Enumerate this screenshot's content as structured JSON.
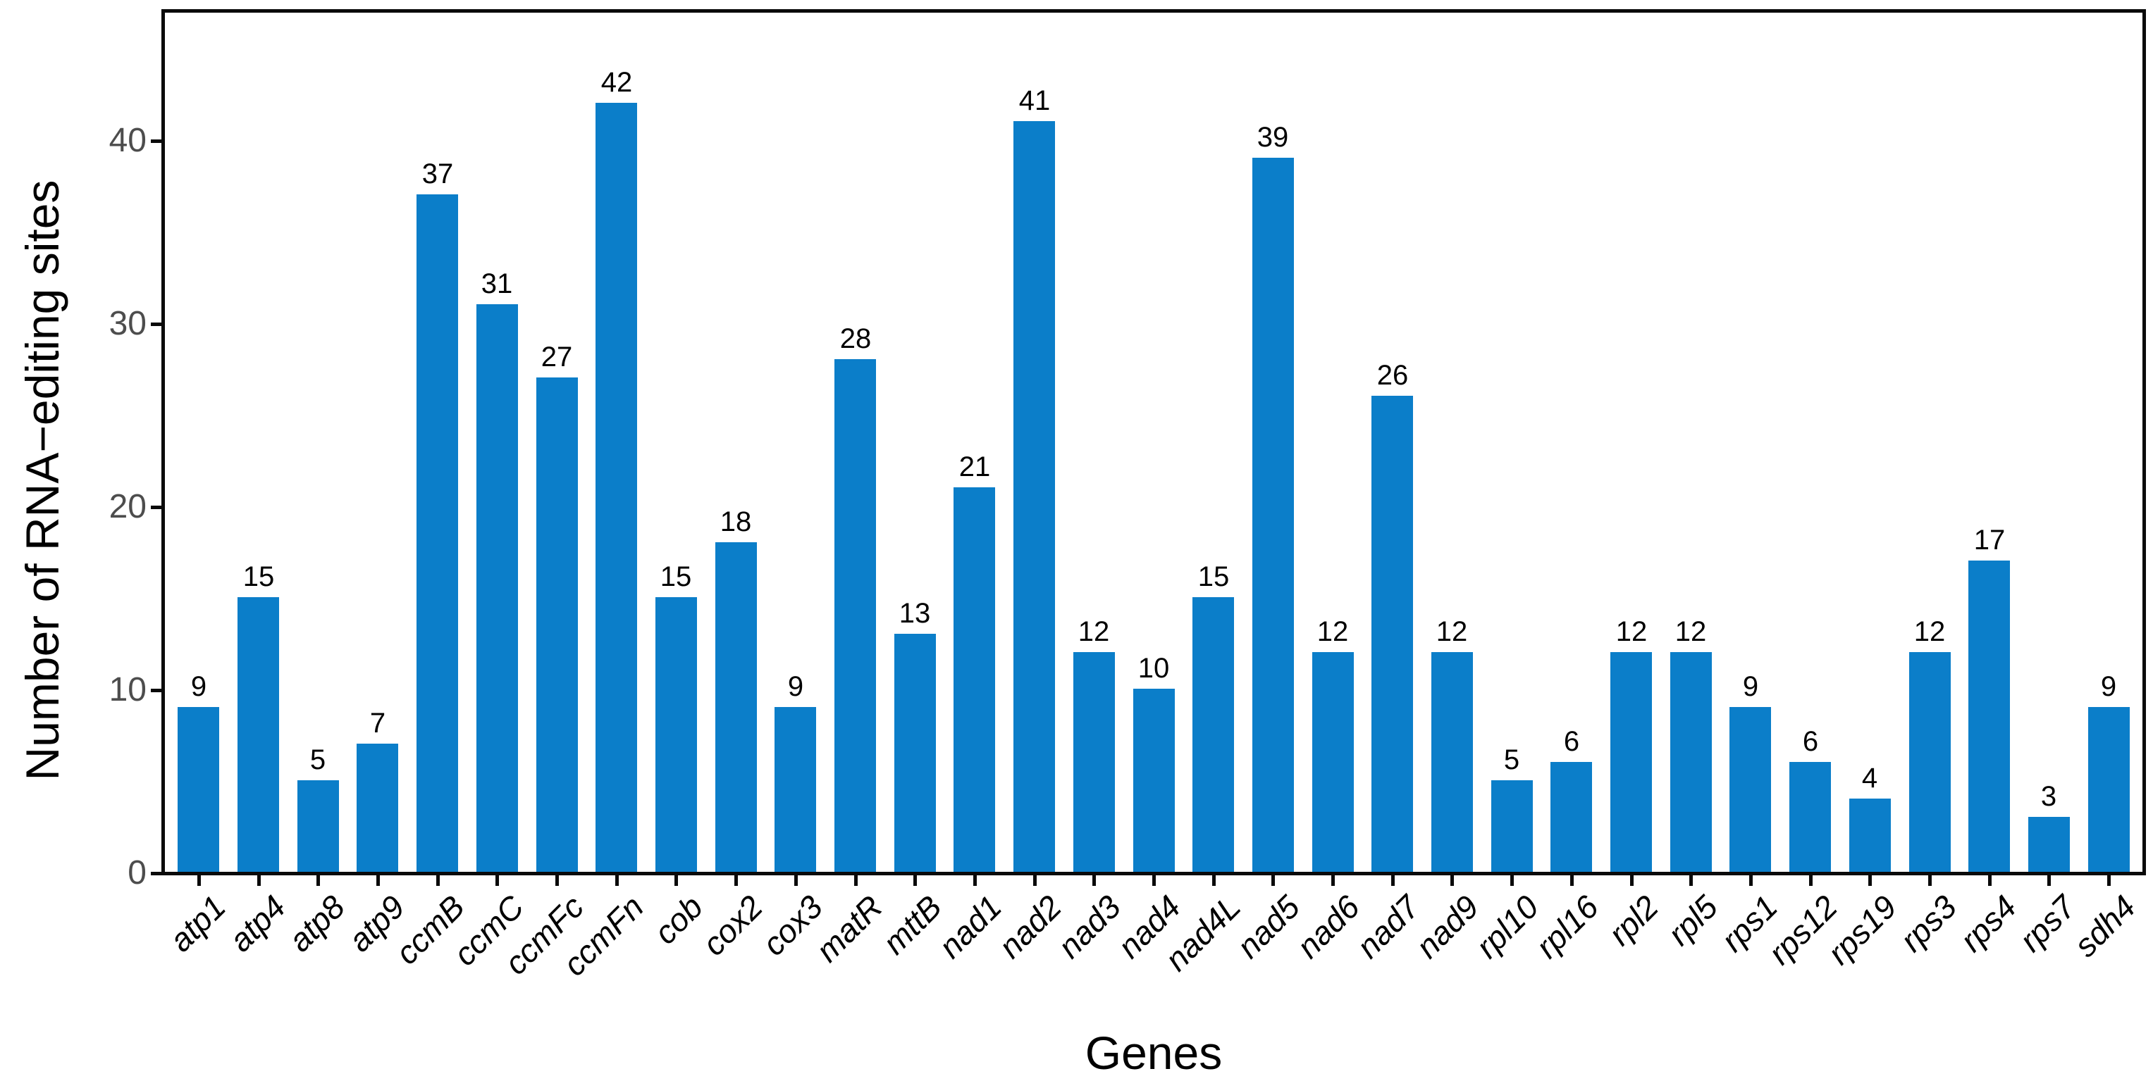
{
  "chart_data": {
    "type": "bar",
    "title": "",
    "xlabel": "Genes",
    "ylabel": "Number of RNA−editing sites",
    "categories": [
      "atp1",
      "atp4",
      "atp8",
      "atp9",
      "ccmB",
      "ccmC",
      "ccmFc",
      "ccmFn",
      "cob",
      "cox2",
      "cox3",
      "matR",
      "mttB",
      "nad1",
      "nad2",
      "nad3",
      "nad4",
      "nad4L",
      "nad5",
      "nad6",
      "nad7",
      "nad9",
      "rpl10",
      "rpl16",
      "rpl2",
      "rpl5",
      "rps1",
      "rps12",
      "rps19",
      "rps3",
      "rps4",
      "rps7",
      "sdh4"
    ],
    "values": [
      9,
      15,
      5,
      7,
      37,
      31,
      27,
      42,
      15,
      18,
      9,
      28,
      13,
      21,
      41,
      12,
      10,
      15,
      39,
      12,
      26,
      12,
      5,
      6,
      12,
      12,
      9,
      6,
      4,
      12,
      17,
      3,
      9
    ],
    "bar_value_labels": [
      "9",
      "15",
      "5",
      "7",
      "37",
      "31",
      "27",
      "42",
      "15",
      "18",
      "9",
      "28",
      "13",
      "21",
      "41",
      "12",
      "10",
      "15",
      "39",
      "12",
      "26",
      "12",
      "5",
      "6",
      "12",
      "12",
      "9",
      "6",
      "4",
      "12",
      "17",
      "3",
      "9"
    ],
    "yticks": [
      0,
      10,
      20,
      30,
      40
    ],
    "ytick_labels": [
      "0",
      "10",
      "20",
      "30",
      "40"
    ],
    "ylim": [
      0,
      47
    ],
    "grid": false,
    "legend": "none",
    "bar_color": "#0b7ec9",
    "axis_color": "#0a0a0a",
    "ytick_text_color": "#4d4d4d",
    "xtick_text_color": "#000000",
    "value_label_color": "#000000"
  }
}
